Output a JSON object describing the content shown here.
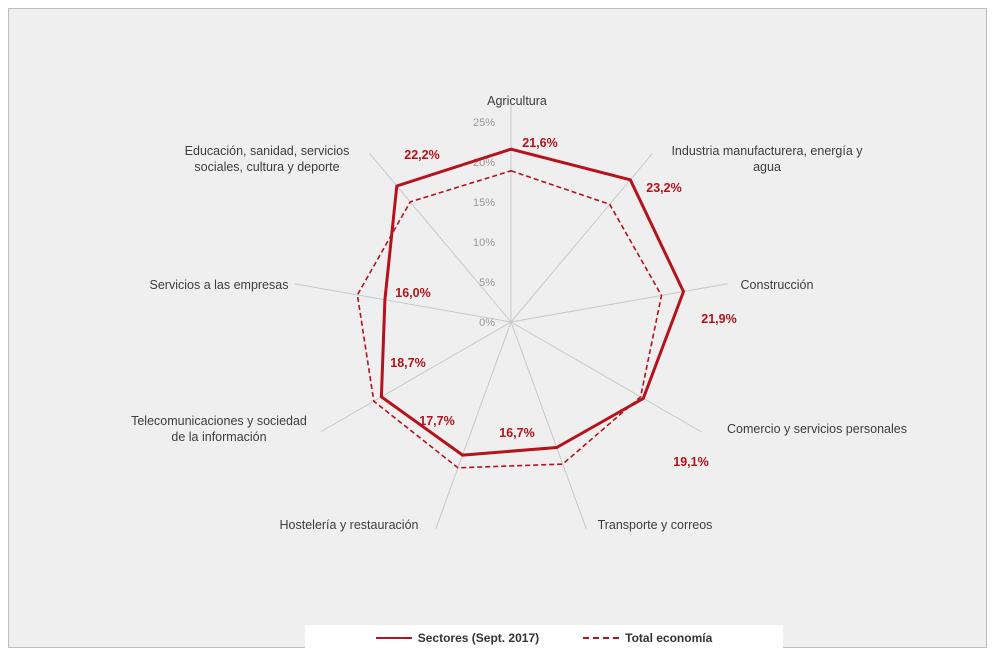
{
  "chart_data": {
    "type": "radar",
    "categories": [
      "Agricultura",
      "Industria manufacturera, energía y agua",
      "Construcción",
      "Comercio y servicios personales",
      "Transporte y correos",
      "Hostelería y restauración",
      "Telecomunicaciones y sociedad de la información",
      "Servicios a las empresas",
      "Educación, sanidad, servicios sociales, cultura y deporte"
    ],
    "category_lines": [
      [
        "Agricultura"
      ],
      [
        "Industria manufacturera, energía y",
        "agua"
      ],
      [
        "Construcción"
      ],
      [
        "Comercio y servicios personales"
      ],
      [
        "Transporte y correos"
      ],
      [
        "Hostelería y restauración"
      ],
      [
        "Telecomunicaciones y sociedad",
        "de la información"
      ],
      [
        "Servicios a las empresas"
      ],
      [
        "Educación, sanidad, servicios",
        "sociales, cultura y deporte"
      ]
    ],
    "series": [
      {
        "name": "Sectores (Sept. 2017)",
        "values": [
          21.6,
          23.2,
          21.9,
          19.1,
          16.7,
          17.7,
          18.7,
          16.0,
          22.2
        ],
        "value_labels": [
          "21,6%",
          "23,2%",
          "21,9%",
          "19,1%",
          "16,7%",
          "17,7%",
          "18,7%",
          "16,0%",
          "22,2%"
        ],
        "style": "solid",
        "color": "#b5121b"
      },
      {
        "name": "Total economía",
        "values": [
          18.9,
          19.2,
          19.1,
          18.7,
          18.9,
          19.4,
          19.8,
          19.5,
          19.6
        ],
        "style": "dashed",
        "color": "#b5121b"
      }
    ],
    "r_ticks": [
      "0%",
      "5%",
      "10%",
      "15%",
      "20%",
      "25%"
    ],
    "r_tick_values": [
      0,
      5,
      10,
      15,
      20,
      25
    ],
    "rlim": [
      0,
      25
    ],
    "grid": "spokes only",
    "legend_position": "bottom"
  },
  "colors": {
    "series": "#b5121b",
    "spokes": "#c8c8c8",
    "background": "#efefef"
  }
}
